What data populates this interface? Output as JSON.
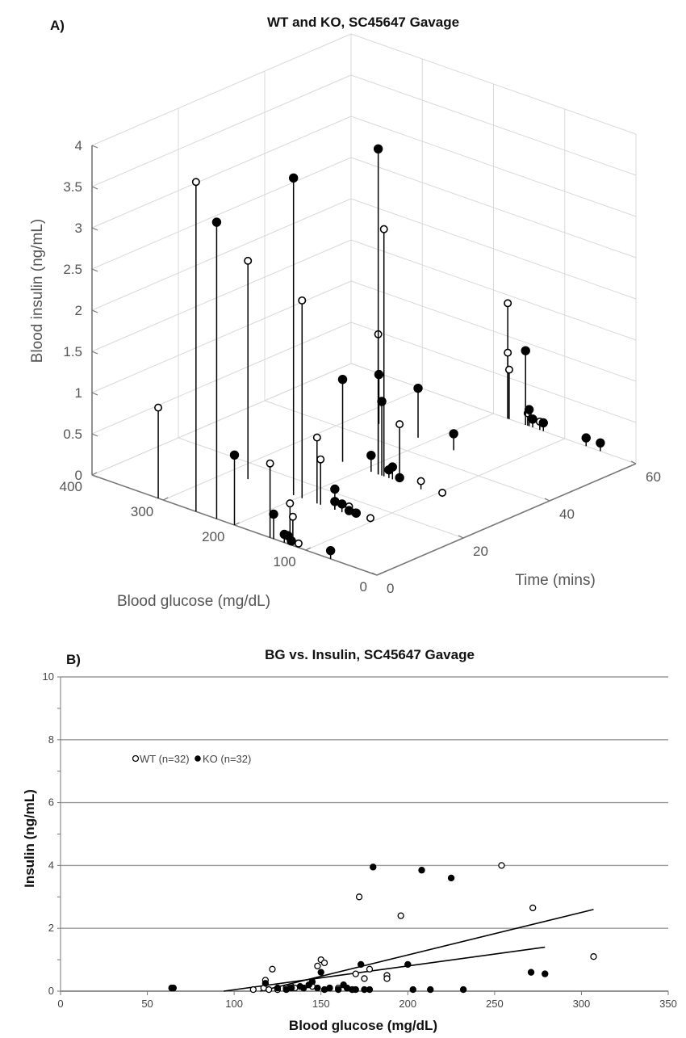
{
  "chart_data": [
    {
      "panel_label": "A)",
      "type": "scatter",
      "subtype": "3d-stem",
      "title": "WT and KO, SC45647 Gavage",
      "xlabel": "Blood glucose (mg/dL)",
      "ylabel": "Time (mins)",
      "zlabel": "Blood insulin (ng/mL)",
      "xlim": [
        0,
        400
      ],
      "ylim": [
        0,
        60
      ],
      "zlim": [
        0,
        4
      ],
      "x_ticks": [
        "0",
        "100",
        "200",
        "300",
        "400"
      ],
      "y_ticks": [
        "0",
        "20",
        "40",
        "60"
      ],
      "z_ticks": [
        "0",
        "0.5",
        "1",
        "1.5",
        "2",
        "2.5",
        "3",
        "3.5",
        "4"
      ],
      "series": [
        {
          "name": "WT",
          "marker": "open",
          "points": [
            {
              "glucose": 307,
              "time": 0,
              "insulin": 1.1
            },
            {
              "glucose": 254,
              "time": 0,
              "insulin": 4.0
            },
            {
              "glucose": 150,
              "time": 0,
              "insulin": 0.9
            },
            {
              "glucose": 122,
              "time": 0,
              "insulin": 0.5
            },
            {
              "glucose": 118,
              "time": 0,
              "insulin": 0.35
            },
            {
              "glucose": 110,
              "time": 0,
              "insulin": 0.05
            },
            {
              "glucose": 130,
              "time": 0,
              "insulin": 0.1
            },
            {
              "glucose": 272,
              "time": 15,
              "insulin": 2.65
            },
            {
              "glucose": 196,
              "time": 15,
              "insulin": 2.4
            },
            {
              "glucose": 175,
              "time": 15,
              "insulin": 0.8
            },
            {
              "glucose": 170,
              "time": 15,
              "insulin": 0.55
            },
            {
              "glucose": 130,
              "time": 15,
              "insulin": 0.1
            },
            {
              "glucose": 122,
              "time": 15,
              "insulin": 0.05
            },
            {
              "glucose": 100,
              "time": 15,
              "insulin": 0.05
            },
            {
              "glucose": 172,
              "time": 30,
              "insulin": 3.0
            },
            {
              "glucose": 180,
              "time": 30,
              "insulin": 1.7
            },
            {
              "glucose": 150,
              "time": 30,
              "insulin": 0.7
            },
            {
              "glucose": 120,
              "time": 30,
              "insulin": 0.1
            },
            {
              "glucose": 90,
              "time": 30,
              "insulin": 0.05
            },
            {
              "glucose": 180,
              "time": 60,
              "insulin": 1.4
            },
            {
              "glucose": 180,
              "time": 60,
              "insulin": 0.8
            },
            {
              "glucose": 178,
              "time": 60,
              "insulin": 0.6
            },
            {
              "glucose": 152,
              "time": 60,
              "insulin": 0.15
            },
            {
              "glucose": 135,
              "time": 60,
              "insulin": 0.1
            }
          ]
        },
        {
          "name": "KO",
          "marker": "filled",
          "points": [
            {
              "glucose": 225,
              "time": 0,
              "insulin": 3.6
            },
            {
              "glucose": 200,
              "time": 0,
              "insulin": 0.85
            },
            {
              "glucose": 145,
              "time": 0,
              "insulin": 0.3
            },
            {
              "glucose": 130,
              "time": 0,
              "insulin": 0.1
            },
            {
              "glucose": 125,
              "time": 0,
              "insulin": 0.1
            },
            {
              "glucose": 120,
              "time": 0,
              "insulin": 0.05
            },
            {
              "glucose": 65,
              "time": 0,
              "insulin": 0.1
            },
            {
              "glucose": 208,
              "time": 15,
              "insulin": 3.85
            },
            {
              "glucose": 150,
              "time": 15,
              "insulin": 0.25
            },
            {
              "glucose": 150,
              "time": 15,
              "insulin": 0.1
            },
            {
              "glucose": 140,
              "time": 15,
              "insulin": 0.1
            },
            {
              "glucose": 130,
              "time": 15,
              "insulin": 0.05
            },
            {
              "glucose": 120,
              "time": 15,
              "insulin": 0.05
            },
            {
              "glucose": 180,
              "time": 30,
              "insulin": 3.95
            },
            {
              "glucose": 175,
              "time": 30,
              "insulin": 0.9
            },
            {
              "glucose": 160,
              "time": 30,
              "insulin": 0.15
            },
            {
              "glucose": 165,
              "time": 30,
              "insulin": 0.1
            },
            {
              "glucose": 150,
              "time": 30,
              "insulin": 0.05
            },
            {
              "glucose": 230,
              "time": 30,
              "insulin": 1.0
            },
            {
              "glucose": 190,
              "time": 30,
              "insulin": 0.2
            },
            {
              "glucose": 270,
              "time": 45,
              "insulin": 0.6
            },
            {
              "glucose": 215,
              "time": 45,
              "insulin": 0.6
            },
            {
              "glucose": 165,
              "time": 45,
              "insulin": 0.2
            },
            {
              "glucose": 155,
              "time": 60,
              "insulin": 0.9
            },
            {
              "glucose": 150,
              "time": 60,
              "insulin": 0.2
            },
            {
              "glucose": 145,
              "time": 60,
              "insulin": 0.1
            },
            {
              "glucose": 130,
              "time": 60,
              "insulin": 0.1
            },
            {
              "glucose": 70,
              "time": 60,
              "insulin": 0.1
            },
            {
              "glucose": 50,
              "time": 60,
              "insulin": 0.1
            }
          ]
        }
      ]
    },
    {
      "panel_label": "B)",
      "type": "scatter",
      "title": "BG vs. Insulin, SC45647 Gavage",
      "xlabel": "Blood glucose (mg/dL)",
      "ylabel": "Insulin (ng/mL)",
      "xlim": [
        0,
        350
      ],
      "ylim": [
        0,
        10
      ],
      "x_ticks": [
        "0",
        "50",
        "100",
        "150",
        "200",
        "250",
        "300",
        "350"
      ],
      "y_ticks": [
        "0",
        "2",
        "4",
        "6",
        "8",
        "10"
      ],
      "grid": "horizontal",
      "legend": {
        "position": "upper-left",
        "entries": [
          "WT (n=32)",
          "KO (n=32)"
        ]
      },
      "series": [
        {
          "name": "WT (n=32)",
          "marker": "open",
          "points": [
            [
              111,
              0.05
            ],
            [
              117,
              0.1
            ],
            [
              118,
              0.35
            ],
            [
              120,
              0.05
            ],
            [
              122,
              0.7
            ],
            [
              125,
              0.05
            ],
            [
              130,
              0.1
            ],
            [
              133,
              0.15
            ],
            [
              135,
              0.1
            ],
            [
              140,
              0.1
            ],
            [
              145,
              0.15
            ],
            [
              148,
              0.8
            ],
            [
              150,
              1.0
            ],
            [
              152,
              0.9
            ],
            [
              155,
              0.1
            ],
            [
              160,
              0.1
            ],
            [
              165,
              0.1
            ],
            [
              168,
              0.05
            ],
            [
              170,
              0.55
            ],
            [
              172,
              3.0
            ],
            [
              175,
              0.4
            ],
            [
              178,
              0.7
            ],
            [
              188,
              0.5
            ],
            [
              188,
              0.4
            ],
            [
              196,
              2.4
            ],
            [
              254,
              4.0
            ],
            [
              272,
              2.65
            ],
            [
              307,
              1.1
            ]
          ],
          "trendline": {
            "x": [
              115,
              307
            ],
            "y": [
              0.0,
              2.6
            ]
          }
        },
        {
          "name": "KO (n=32)",
          "marker": "filled",
          "points": [
            [
              64,
              0.1
            ],
            [
              65,
              0.1
            ],
            [
              118,
              0.25
            ],
            [
              125,
              0.1
            ],
            [
              130,
              0.05
            ],
            [
              133,
              0.1
            ],
            [
              138,
              0.15
            ],
            [
              140,
              0.1
            ],
            [
              143,
              0.2
            ],
            [
              145,
              0.3
            ],
            [
              148,
              0.1
            ],
            [
              150,
              0.6
            ],
            [
              152,
              0.05
            ],
            [
              155,
              0.1
            ],
            [
              160,
              0.05
            ],
            [
              163,
              0.2
            ],
            [
              165,
              0.1
            ],
            [
              168,
              0.05
            ],
            [
              170,
              0.05
            ],
            [
              173,
              0.85
            ],
            [
              175,
              0.05
            ],
            [
              178,
              0.05
            ],
            [
              180,
              3.95
            ],
            [
              200,
              0.85
            ],
            [
              203,
              0.05
            ],
            [
              208,
              3.85
            ],
            [
              213,
              0.05
            ],
            [
              225,
              3.6
            ],
            [
              232,
              0.05
            ],
            [
              271,
              0.6
            ],
            [
              279,
              0.55
            ]
          ],
          "trendline": {
            "x": [
              94,
              279
            ],
            "y": [
              0.0,
              1.4
            ]
          }
        }
      ]
    }
  ]
}
